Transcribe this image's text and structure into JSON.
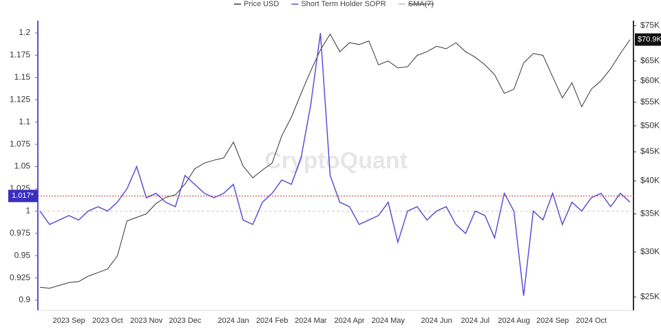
{
  "chart_data": {
    "type": "line",
    "legend": "top",
    "watermark": "CryptoQuant",
    "categories": [
      null,
      null,
      null,
      "2023 Sep",
      null,
      null,
      null,
      "2023 Oct",
      null,
      null,
      null,
      "2023 Nov",
      null,
      null,
      null,
      "2023 Dec",
      null,
      null,
      null,
      null,
      "2024 Jan",
      null,
      null,
      null,
      "2024 Feb",
      null,
      null,
      null,
      "2024 Mar",
      null,
      null,
      null,
      "2024 Apr",
      null,
      null,
      null,
      "2024 May",
      null,
      null,
      null,
      null,
      "2024 Jun",
      null,
      null,
      null,
      "2024 Jul",
      null,
      null,
      null,
      "2024 Aug",
      null,
      null,
      null,
      "2024 Sep",
      null,
      null,
      null,
      "2024 Oct",
      null,
      null,
      null,
      null
    ],
    "ylim": [
      0.89,
      1.21
    ],
    "yticks": [
      0.9,
      0.925,
      0.95,
      0.975,
      1,
      1.025,
      1.05,
      1.075,
      1.1,
      1.125,
      1.15,
      1.175,
      1.2
    ],
    "y2lim": [
      23800,
      75500
    ],
    "y2scale": "log",
    "y2ticks": [
      {
        "value": 25000,
        "label": "$25K"
      },
      {
        "value": 30000,
        "label": "$30K"
      },
      {
        "value": 35000,
        "label": "$35K"
      },
      {
        "value": 40000,
        "label": "$40K"
      },
      {
        "value": 45000,
        "label": "$45K"
      },
      {
        "value": 50000,
        "label": "$50K"
      },
      {
        "value": 55000,
        "label": "$55K"
      },
      {
        "value": 60000,
        "label": "$60K"
      },
      {
        "value": 65000,
        "label": "$65K"
      },
      {
        "value": 75000,
        "label": "$75K"
      }
    ],
    "baseline": 1,
    "reference_line": {
      "value": 1.017,
      "label": "1.017*",
      "color": "#e02020"
    },
    "current_price": {
      "value": 70900,
      "label": "$70.9K"
    },
    "series": [
      {
        "name": "Price USD",
        "color": "#333333",
        "axis": "y2",
        "values": [
          26000,
          25900,
          26200,
          26500,
          26600,
          27200,
          27600,
          28000,
          29500,
          34000,
          34500,
          35000,
          36500,
          37400,
          37800,
          39500,
          42000,
          43000,
          43500,
          43900,
          46800,
          42500,
          40500,
          41800,
          43000,
          48000,
          51800,
          57000,
          62500,
          68000,
          72500,
          67500,
          70000,
          69500,
          70500,
          64000,
          65000,
          63200,
          63500,
          66500,
          67500,
          69000,
          68300,
          70000,
          67500,
          66000,
          64000,
          61500,
          57000,
          58000,
          64500,
          67000,
          66500,
          61000,
          56000,
          59500,
          54000,
          58000,
          60000,
          63000,
          67000,
          70900
        ]
      },
      {
        "name": "Short Term Holder SOPR",
        "color": "#5a4fd6",
        "values": [
          1.0,
          0.985,
          0.99,
          0.995,
          0.99,
          1.0,
          1.005,
          1.0,
          1.01,
          1.025,
          1.05,
          1.015,
          1.02,
          1.01,
          1.005,
          1.04,
          1.03,
          1.02,
          1.015,
          1.02,
          1.03,
          0.99,
          0.985,
          1.01,
          1.02,
          1.035,
          1.03,
          1.06,
          1.12,
          1.2,
          1.04,
          1.01,
          1.005,
          0.985,
          0.99,
          0.995,
          1.01,
          0.965,
          1.0,
          1.005,
          0.99,
          1.0,
          1.005,
          0.985,
          0.975,
          1.0,
          0.995,
          0.97,
          1.02,
          1.0,
          0.905,
          1.0,
          0.99,
          1.02,
          0.985,
          1.01,
          1.0,
          1.015,
          1.02,
          1.005,
          1.02,
          1.01
        ]
      },
      {
        "name": "SMA(7)",
        "color": "#bbbbbb",
        "visible": false
      }
    ]
  }
}
